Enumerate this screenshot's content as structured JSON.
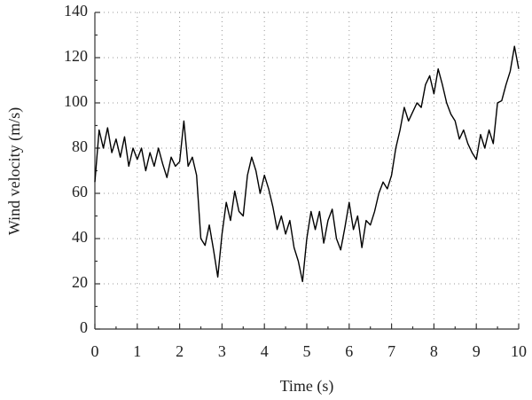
{
  "chart_data": {
    "type": "line",
    "xlabel": "Time (s)",
    "ylabel": "Wind velocity (m/s)",
    "x": [
      0,
      0.1,
      0.2,
      0.3,
      0.4,
      0.5,
      0.6,
      0.7,
      0.8,
      0.9,
      1,
      1.1,
      1.2,
      1.3,
      1.4,
      1.5,
      1.6,
      1.7,
      1.8,
      1.9,
      2,
      2.1,
      2.2,
      2.3,
      2.4,
      2.5,
      2.6,
      2.7,
      2.8,
      2.9,
      3,
      3.1,
      3.2,
      3.3,
      3.4,
      3.5,
      3.6,
      3.7,
      3.8,
      3.9,
      4,
      4.1,
      4.2,
      4.3,
      4.4,
      4.5,
      4.6,
      4.7,
      4.8,
      4.9,
      5,
      5.1,
      5.2,
      5.3,
      5.4,
      5.5,
      5.6,
      5.7,
      5.8,
      5.9,
      6,
      6.1,
      6.2,
      6.3,
      6.4,
      6.5,
      6.6,
      6.7,
      6.8,
      6.9,
      7,
      7.1,
      7.2,
      7.3,
      7.4,
      7.5,
      7.6,
      7.7,
      7.8,
      7.9,
      8,
      8.1,
      8.2,
      8.3,
      8.4,
      8.5,
      8.6,
      8.7,
      8.8,
      8.9,
      9,
      9.1,
      9.2,
      9.3,
      9.4,
      9.5,
      9.6,
      9.7,
      9.8,
      9.9,
      10
    ],
    "values": [
      65,
      88,
      80,
      89,
      78,
      84,
      76,
      85,
      72,
      80,
      75,
      80,
      70,
      78,
      72,
      80,
      73,
      67,
      76,
      72,
      74,
      92,
      72,
      76,
      68,
      40,
      37,
      46,
      35,
      23,
      42,
      56,
      48,
      61,
      52,
      50,
      68,
      76,
      70,
      60,
      68,
      62,
      54,
      44,
      50,
      42,
      48,
      36,
      30,
      21,
      40,
      52,
      44,
      52,
      38,
      48,
      53,
      40,
      35,
      45,
      56,
      44,
      50,
      36,
      48,
      46,
      52,
      60,
      65,
      62,
      68,
      80,
      88,
      98,
      92,
      96,
      100,
      98,
      108,
      112,
      104,
      115,
      108,
      100,
      95,
      92,
      84,
      88,
      82,
      78,
      75,
      86,
      80,
      88,
      82,
      100,
      101,
      108,
      114,
      125,
      115
    ],
    "color": "#000000",
    "xlim": [
      0,
      10
    ],
    "xticks": [
      0,
      1,
      2,
      3,
      4,
      5,
      6,
      7,
      8,
      9,
      10
    ],
    "ylim": [
      0,
      140
    ],
    "yticks": [
      0,
      20,
      40,
      60,
      80,
      100,
      120,
      140
    ],
    "grid": true
  }
}
